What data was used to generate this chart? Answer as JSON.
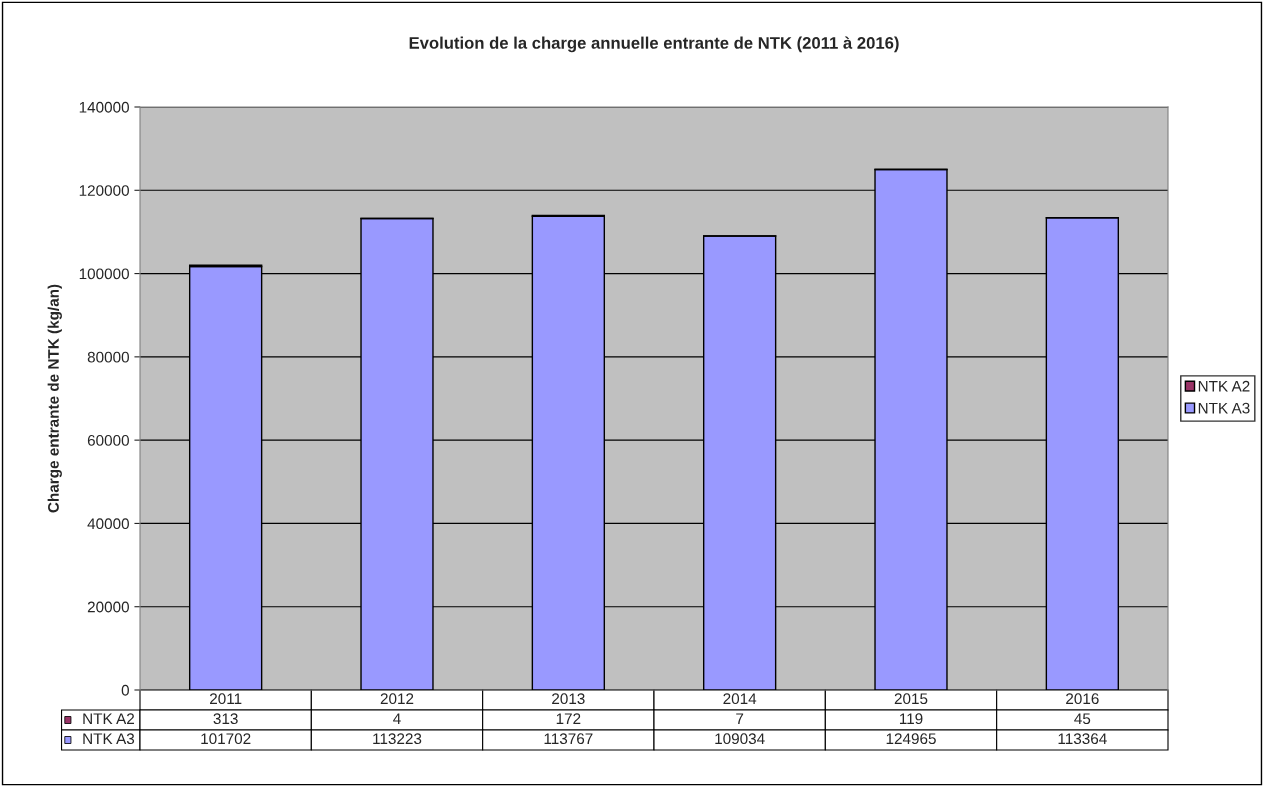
{
  "chart_data": {
    "type": "bar",
    "title": "Evolution de la charge annuelle entrante de NTK (2011 à 2016)",
    "ylabel": "Charge entrante de NTK (kg/an)",
    "categories": [
      "2011",
      "2012",
      "2013",
      "2014",
      "2015",
      "2016"
    ],
    "stacked": true,
    "series": [
      {
        "name": "NTK A3",
        "color": "#9999ff",
        "values": [
          101702,
          113223,
          113767,
          109034,
          124965,
          113364
        ]
      },
      {
        "name": "NTK A2",
        "color": "#993366",
        "values": [
          313,
          4,
          172,
          7,
          119,
          45
        ]
      }
    ],
    "ylim": [
      0,
      140000
    ],
    "yticks": [
      0,
      20000,
      40000,
      60000,
      80000,
      100000,
      120000,
      140000
    ],
    "grid": "y",
    "legend": "right",
    "data_labels": true
  }
}
